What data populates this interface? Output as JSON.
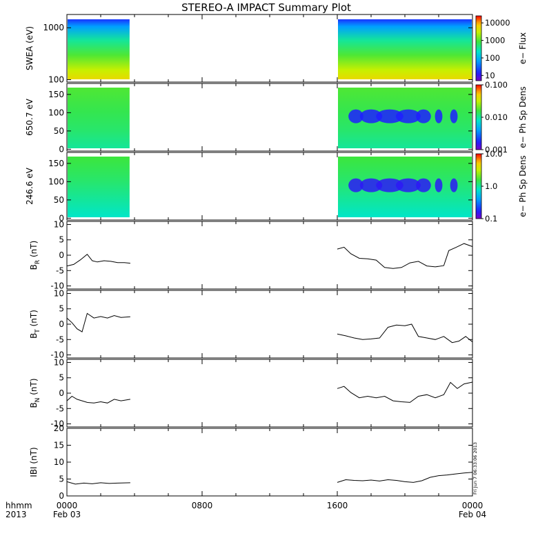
{
  "chart_data": {
    "type": "line",
    "title": "STEREO-A IMPACT Summary Plot",
    "time_axis": {
      "range_hours": [
        0,
        24
      ],
      "ticks": [
        {
          "hour": 0,
          "label": "0000",
          "sub": "Feb 03"
        },
        {
          "hour": 8,
          "label": "0800",
          "sub": ""
        },
        {
          "hour": 16,
          "label": "1600",
          "sub": ""
        },
        {
          "hour": 24,
          "label": "0000",
          "sub": "Feb 04"
        }
      ],
      "row_labels": [
        "hhmm",
        "2013"
      ]
    },
    "data_gap_hours": [
      3.75,
      16.0
    ],
    "spectrograms": [
      {
        "ylabel": "SWEA (eV)",
        "yscale": "log",
        "ylim": [
          90,
          1800
        ],
        "yticks": [
          "100",
          "1000"
        ],
        "yticks_values": [
          100,
          1000
        ],
        "colorbar_label": "e− Flux",
        "colorbar_ticks": [
          "10",
          "100",
          "1000",
          "10000"
        ],
        "colorbar_range_log": [
          0.7,
          4.4
        ],
        "colorbar_ticks_log": [
          1,
          2,
          3,
          4
        ]
      },
      {
        "ylabel": "650.7 eV",
        "yscale": "linear",
        "ylim": [
          -5,
          180
        ],
        "yticks": [
          "0",
          "50",
          "100",
          "150"
        ],
        "yticks_values": [
          0,
          50,
          100,
          150
        ],
        "colorbar_label": "e− Ph Sp Dens",
        "colorbar_ticks": [
          "0.001",
          "0.010",
          "0.100"
        ],
        "colorbar_range_log": [
          -3,
          -1
        ],
        "colorbar_ticks_log": [
          -3,
          -2,
          -1
        ]
      },
      {
        "ylabel": "246.6 eV",
        "yscale": "linear",
        "ylim": [
          -5,
          180
        ],
        "yticks": [
          "0",
          "50",
          "100",
          "150"
        ],
        "yticks_values": [
          0,
          50,
          100,
          150
        ],
        "colorbar_label": "e− Ph Sp Dens",
        "colorbar_ticks": [
          "0.1",
          "1.0",
          "10.0"
        ],
        "colorbar_range_log": [
          -1,
          1
        ],
        "colorbar_ticks_log": [
          -1,
          0,
          1
        ]
      }
    ],
    "line_panels": [
      {
        "ylabel": "B_R (nT)",
        "ylabel_main": "B",
        "ylabel_sub": "R",
        "ylabel_unit": " (nT)",
        "ylim": [
          -11,
          11
        ],
        "yticks": [
          -10,
          -5,
          0,
          5,
          10
        ],
        "x": [
          0,
          0.4,
          0.8,
          1.2,
          1.5,
          1.8,
          2.2,
          2.6,
          3.0,
          3.4,
          3.75,
          16.0,
          16.4,
          16.8,
          17.3,
          17.8,
          18.3,
          18.8,
          19.3,
          19.8,
          20.3,
          20.8,
          21.3,
          21.8,
          22.3,
          22.6,
          23.0,
          23.5,
          24.0
        ],
        "y": [
          -3.5,
          -3.0,
          -1.5,
          0.3,
          -1.8,
          -2.2,
          -1.8,
          -2.0,
          -2.4,
          -2.4,
          -2.6,
          2.0,
          2.6,
          0.5,
          -1.0,
          -1.2,
          -1.6,
          -4.0,
          -4.3,
          -4.0,
          -2.5,
          -2.0,
          -3.5,
          -3.8,
          -3.4,
          1.5,
          2.5,
          3.8,
          2.8
        ]
      },
      {
        "ylabel": "B_T (nT)",
        "ylabel_main": "B",
        "ylabel_sub": "T",
        "ylabel_unit": " (nT)",
        "ylim": [
          -11,
          11
        ],
        "yticks": [
          -10,
          -5,
          0,
          5,
          10
        ],
        "x": [
          0,
          0.3,
          0.6,
          0.9,
          1.2,
          1.6,
          2.0,
          2.4,
          2.8,
          3.2,
          3.75,
          16.0,
          16.5,
          17.0,
          17.5,
          18.0,
          18.5,
          19.0,
          19.5,
          20.0,
          20.4,
          20.8,
          21.3,
          21.8,
          22.3,
          22.8,
          23.2,
          23.6,
          24.0
        ],
        "y": [
          2.0,
          0.5,
          -1.5,
          -2.5,
          3.5,
          2.0,
          2.5,
          2.0,
          2.8,
          2.2,
          2.4,
          -3.2,
          -3.8,
          -4.5,
          -5.0,
          -4.8,
          -4.5,
          -1.0,
          -0.3,
          -0.5,
          0.0,
          -4.0,
          -4.5,
          -5.0,
          -4.0,
          -6.0,
          -5.5,
          -4.0,
          -5.8
        ]
      },
      {
        "ylabel": "B_N (nT)",
        "ylabel_main": "B",
        "ylabel_sub": "N",
        "ylabel_unit": " (nT)",
        "ylim": [
          -11,
          11
        ],
        "yticks": [
          -10,
          -5,
          0,
          5,
          10
        ],
        "x": [
          0,
          0.3,
          0.6,
          0.9,
          1.2,
          1.6,
          2.0,
          2.4,
          2.8,
          3.2,
          3.75,
          16.0,
          16.4,
          16.8,
          17.3,
          17.8,
          18.3,
          18.8,
          19.3,
          19.8,
          20.3,
          20.8,
          21.3,
          21.8,
          22.3,
          22.7,
          23.1,
          23.5,
          24.0
        ],
        "y": [
          -2.5,
          -1.0,
          -2.0,
          -2.5,
          -3.0,
          -3.2,
          -2.8,
          -3.2,
          -2.0,
          -2.5,
          -2.0,
          1.5,
          2.2,
          0.2,
          -1.5,
          -1.0,
          -1.5,
          -1.0,
          -2.5,
          -2.8,
          -3.0,
          -1.0,
          -0.5,
          -1.5,
          -0.5,
          3.5,
          1.5,
          3.0,
          3.6
        ]
      },
      {
        "ylabel": "IBI (nT)",
        "ylim": [
          0,
          20
        ],
        "yticks": [
          0,
          5,
          10,
          15,
          20
        ],
        "x": [
          0,
          0.5,
          1.0,
          1.5,
          2.0,
          2.5,
          3.0,
          3.75,
          16.0,
          16.5,
          17.0,
          17.5,
          18.0,
          18.5,
          19.0,
          19.5,
          20.0,
          20.5,
          21.0,
          21.5,
          22.0,
          22.5,
          23.0,
          23.5,
          24.0
        ],
        "y": [
          4.2,
          3.5,
          3.8,
          3.6,
          3.9,
          3.7,
          3.8,
          3.9,
          4.0,
          4.8,
          4.6,
          4.5,
          4.7,
          4.4,
          4.8,
          4.6,
          4.2,
          4.0,
          4.5,
          5.5,
          6.0,
          6.2,
          6.5,
          6.8,
          7.0
        ]
      }
    ],
    "timestamp_note": "Fri Jun  7 06:33:06 2013"
  }
}
